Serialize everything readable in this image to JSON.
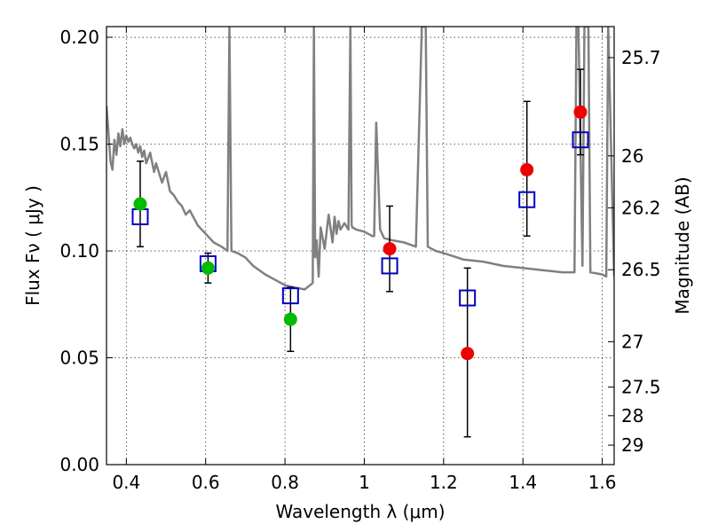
{
  "chart_data": {
    "type": "scatter",
    "title": "",
    "xlabel": "Wavelength  λ (μm)",
    "ylabel": "Flux  Fν  ( μJy )",
    "y2label": "Magnitude (AB)",
    "xlim": [
      0.35,
      1.63
    ],
    "ylim": [
      0.0,
      0.205
    ],
    "x_ticks": [
      0.4,
      0.6,
      0.8,
      1.0,
      1.2,
      1.4,
      1.6
    ],
    "x_tick_labels": [
      "0.4",
      "0.6",
      "0.8",
      "1",
      "1.2",
      "1.4",
      "1.6"
    ],
    "y_ticks": [
      0.0,
      0.05,
      0.1,
      0.15,
      0.2
    ],
    "y_tick_labels": [
      "0.00",
      "0.05",
      "0.10",
      "0.15",
      "0.20"
    ],
    "y2_ticks": [
      {
        "flux": 0.1905,
        "label": "25.7"
      },
      {
        "flux": 0.1445,
        "label": "26"
      },
      {
        "flux": 0.1202,
        "label": "26.2"
      },
      {
        "flux": 0.0912,
        "label": "26.5"
      },
      {
        "flux": 0.0575,
        "label": "27"
      },
      {
        "flux": 0.0363,
        "label": "27.5"
      },
      {
        "flux": 0.0229,
        "label": "28"
      },
      {
        "flux": 0.0091,
        "label": "29"
      }
    ],
    "grid": true,
    "colors": {
      "model": "#808080",
      "model_fluxes": "#0000c0",
      "green_points": "#00bb00",
      "red_points": "#ee0000",
      "errorbars": "#000000"
    },
    "model_spectrum": {
      "x": [
        0.35,
        0.36,
        0.365,
        0.37,
        0.375,
        0.38,
        0.385,
        0.39,
        0.395,
        0.4,
        0.405,
        0.41,
        0.415,
        0.42,
        0.425,
        0.43,
        0.435,
        0.44,
        0.445,
        0.45,
        0.46,
        0.47,
        0.475,
        0.48,
        0.49,
        0.5,
        0.51,
        0.52,
        0.53,
        0.54,
        0.55,
        0.56,
        0.58,
        0.6,
        0.62,
        0.64,
        0.655,
        0.66,
        0.665,
        0.68,
        0.7,
        0.72,
        0.75,
        0.78,
        0.8,
        0.82,
        0.85,
        0.87,
        0.873,
        0.876,
        0.88,
        0.885,
        0.89,
        0.9,
        0.91,
        0.92,
        0.925,
        0.93,
        0.935,
        0.94,
        0.95,
        0.96,
        0.965,
        0.968,
        0.97,
        0.98,
        1.0,
        1.02,
        1.025,
        1.03,
        1.04,
        1.05,
        1.07,
        1.1,
        1.13,
        1.145,
        1.15,
        1.155,
        1.16,
        1.18,
        1.2,
        1.25,
        1.3,
        1.35,
        1.4,
        1.45,
        1.5,
        1.52,
        1.53,
        1.535,
        1.54,
        1.55,
        1.555,
        1.56,
        1.565,
        1.57,
        1.6,
        1.61,
        1.615,
        1.63
      ],
      "y": [
        0.168,
        0.142,
        0.138,
        0.152,
        0.145,
        0.155,
        0.149,
        0.157,
        0.15,
        0.154,
        0.151,
        0.153,
        0.15,
        0.148,
        0.15,
        0.146,
        0.149,
        0.144,
        0.147,
        0.141,
        0.146,
        0.137,
        0.141,
        0.138,
        0.132,
        0.137,
        0.128,
        0.126,
        0.123,
        0.121,
        0.117,
        0.119,
        0.112,
        0.108,
        0.104,
        0.102,
        0.1,
        0.205,
        0.1,
        0.099,
        0.097,
        0.093,
        0.089,
        0.086,
        0.084,
        0.083,
        0.082,
        0.085,
        0.205,
        0.097,
        0.105,
        0.088,
        0.111,
        0.101,
        0.117,
        0.104,
        0.116,
        0.108,
        0.114,
        0.11,
        0.113,
        0.11,
        0.205,
        0.112,
        0.111,
        0.11,
        0.109,
        0.107,
        0.107,
        0.16,
        0.11,
        0.106,
        0.105,
        0.104,
        0.102,
        0.205,
        0.205,
        0.205,
        0.102,
        0.1,
        0.099,
        0.096,
        0.095,
        0.093,
        0.092,
        0.091,
        0.09,
        0.09,
        0.09,
        0.205,
        0.205,
        0.093,
        0.205,
        0.205,
        0.205,
        0.09,
        0.089,
        0.088,
        0.205,
        0.088
      ]
    },
    "model_fluxes": {
      "marker": "open-square",
      "x": [
        0.435,
        0.606,
        0.814,
        1.064,
        1.26,
        1.41,
        1.545
      ],
      "y": [
        0.116,
        0.094,
        0.079,
        0.093,
        0.078,
        0.124,
        0.152
      ]
    },
    "green_points": {
      "marker": "filled-circle",
      "x": [
        0.435,
        0.606,
        0.814
      ],
      "y": [
        0.122,
        0.092,
        0.068
      ],
      "err_low": [
        0.102,
        0.085,
        0.053
      ],
      "err_high": [
        0.142,
        0.099,
        0.083
      ]
    },
    "red_points": {
      "marker": "filled-circle",
      "x": [
        1.064,
        1.26,
        1.41,
        1.545
      ],
      "y": [
        0.101,
        0.052,
        0.138,
        0.165
      ],
      "err_low": [
        0.081,
        0.013,
        0.107,
        0.145
      ],
      "err_high": [
        0.121,
        0.092,
        0.17,
        0.185
      ]
    }
  }
}
